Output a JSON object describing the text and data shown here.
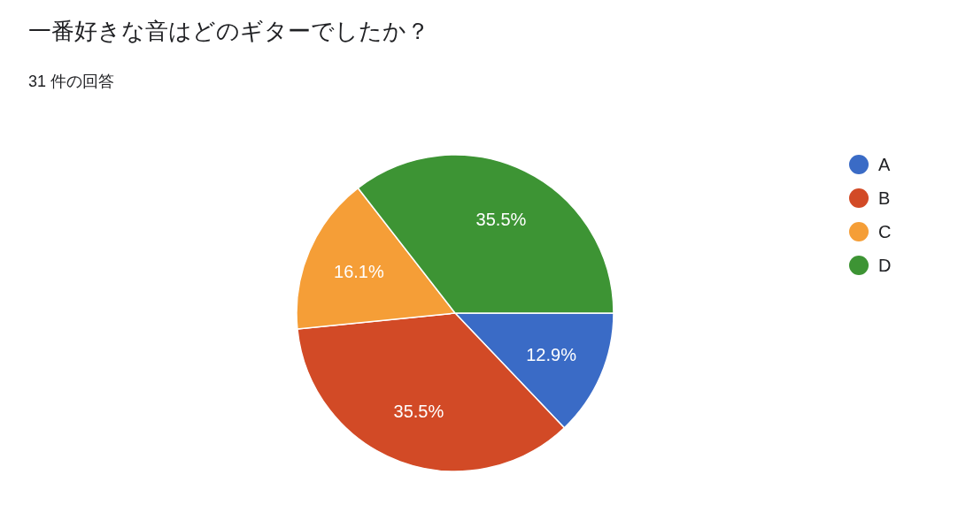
{
  "chart_data": {
    "type": "pie",
    "title": "一番好きな音はどのギターでしたか？",
    "subtitle": "31 件の回答",
    "categories": [
      "A",
      "B",
      "C",
      "D"
    ],
    "values": [
      12.9,
      35.5,
      16.1,
      35.5
    ],
    "value_labels": [
      "12.9%",
      "35.5%",
      "16.1%",
      "35.5%"
    ],
    "colors": [
      "#3a6bc6",
      "#d24a26",
      "#f59e37",
      "#3d9434"
    ],
    "legend": "right"
  }
}
